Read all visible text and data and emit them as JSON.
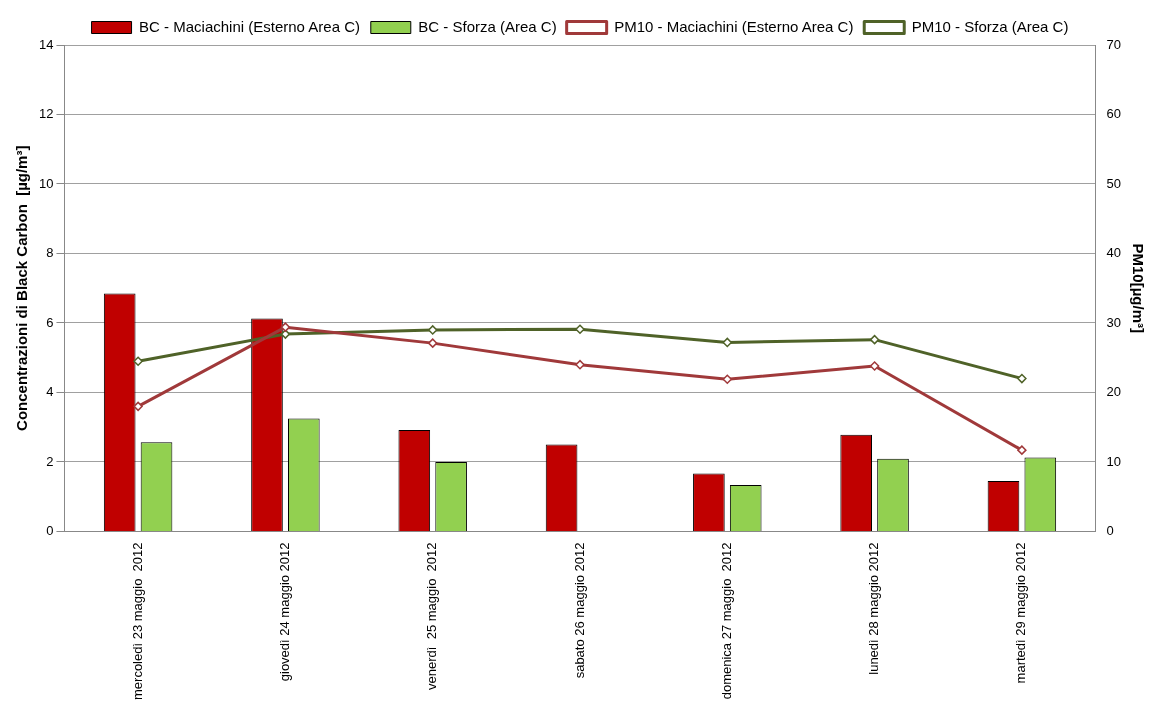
{
  "chart_data": {
    "type": "bar",
    "ylabel": "Concentrazioni di Black Carbon  [µg/m³]",
    "y2label": "PM10[µg/m³]",
    "categories": [
      "mercoledì 23 maggio  2012",
      "giovedì 24 maggio 2012",
      "venerdì  25 maggio  2012",
      "sabato 26 maggio 2012",
      "domenica 27 maggio  2012",
      "lunedì 28 maggio 2012",
      "martedì 29 maggio 2012"
    ],
    "series": [
      {
        "name": "BC - Maciachini (Esterno Area C)",
        "color": "#c00000",
        "values": [
          6.85,
          6.13,
          2.92,
          2.5,
          1.67,
          2.78,
          1.45
        ]
      },
      {
        "name": "BC - Sforza (Area C)",
        "color": "#92d050",
        "values": [
          2.57,
          3.25,
          2.0,
          null,
          1.34,
          2.09,
          2.13
        ]
      },
      {
        "name": "PM10 - Maciachini (Esterno Area C)",
        "type": "line",
        "axis": "y2",
        "color": "#a0393a",
        "values": [
          18.0,
          29.4,
          27.1,
          24.0,
          21.9,
          23.8,
          11.7
        ]
      },
      {
        "name": "PM10 - Sforza (Area C)",
        "type": "line",
        "axis": "y2",
        "color": "#4f6228",
        "values": [
          24.5,
          28.4,
          29.0,
          29.1,
          27.2,
          27.6,
          22.0
        ]
      }
    ],
    "ylim": [
      0,
      14
    ],
    "yticks": [
      0,
      2,
      4,
      6,
      8,
      10,
      12,
      14
    ],
    "y2lim": [
      0,
      70
    ],
    "y2ticks": [
      0,
      10,
      20,
      30,
      40,
      50,
      60,
      70
    ],
    "grid": "y",
    "legend": "top",
    "marker": "diamond"
  }
}
